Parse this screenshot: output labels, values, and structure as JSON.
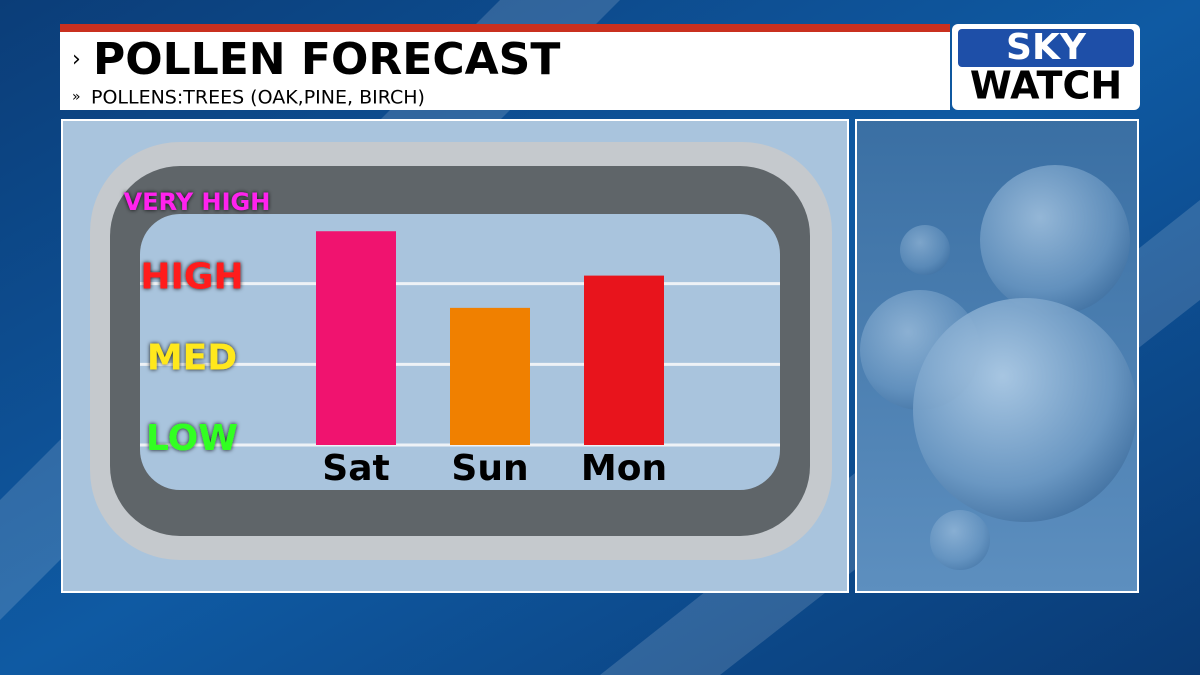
{
  "chart_data": {
    "type": "bar",
    "title": "POLLEN FORECAST",
    "subtitle": "POLLENS:TREES (OAK,PINE, BIRCH)",
    "categories": [
      "Sat",
      "Sun",
      "Mon"
    ],
    "values": [
      3.65,
      2.7,
      3.1
    ],
    "colors": [
      "#f0136f",
      "#f08000",
      "#e8141c"
    ],
    "ylim": [
      1,
      4
    ],
    "yticks": [
      {
        "value": 1,
        "label": "LOW",
        "color": "#33ff22",
        "grid": true
      },
      {
        "value": 2,
        "label": "MED",
        "color": "#ffe81a",
        "grid": true
      },
      {
        "value": 3,
        "label": "HIGH",
        "color": "#ff1a1a",
        "grid": true
      },
      {
        "value": 4,
        "label": "VERY HIGH",
        "color": "#ff22ee",
        "grid": false
      }
    ]
  },
  "logo": {
    "line1": "SKY",
    "line2": "WATCH"
  }
}
